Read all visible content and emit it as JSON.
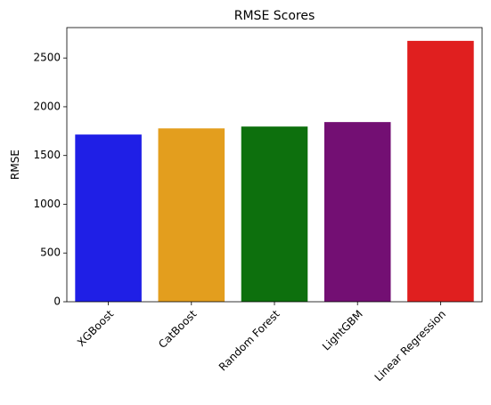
{
  "chart_data": {
    "type": "bar",
    "title": "RMSE Scores",
    "xlabel": "",
    "ylabel": "RMSE",
    "categories": [
      "XGBoost",
      "CatBoost",
      "Random Forest",
      "LightGBM",
      "Linear Regression"
    ],
    "values": [
      1715,
      1778,
      1797,
      1843,
      2676
    ],
    "colors": [
      "#1f1fe6",
      "#e39e1e",
      "#0d700d",
      "#730f73",
      "#e01f1f"
    ],
    "ylim": [
      0,
      2812
    ],
    "yticks": [
      0,
      500,
      1000,
      1500,
      2000,
      2500
    ],
    "grid": false,
    "legend": "none"
  }
}
